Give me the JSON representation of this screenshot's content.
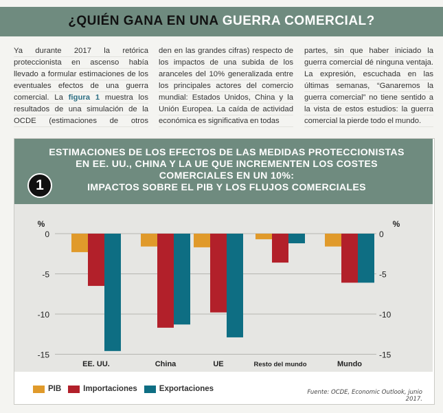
{
  "header": {
    "title_prefix": "¿QUIÉN GANA EN UNA ",
    "title_highlight": "GUERRA COMERCIAL?"
  },
  "intro": {
    "col1_before": "Ya durante 2017 la retórica proteccionista en ascenso había llevado a formular estimaciones de los eventuales efectos de una guerra comercial. La ",
    "col1_ref": "figura 1",
    "col1_after": " muestra los resultados de una simulación de la OCDE (estimaciones de otros organismos coinci-",
    "col2": "den en las grandes cifras) respecto de los impactos de una subida de los aranceles del 10% generalizada entre los principales actores del comercio mundial: Estados Unidos, China y la Unión Europea. La caída de actividad económica es significativa en todas",
    "col3": "partes, sin que haber iniciado la guerra comercial dé ninguna ventaja. La expresión, escuchada en las últimas semanas, “Ganaremos la guerra comercial” no tiene sentido a la vista de estos estudios: la guerra comercial la pierde todo el mundo."
  },
  "figure": {
    "number": "1",
    "title": "ESTIMACIONES DE LOS EFECTOS DE LAS MEDIDAS PROTECCIONISTAS\nEN EE. UU., CHINA Y LA UE QUE INCREMENTEN LOS COSTES\nCOMERCIALES EN UN 10%:\nIMPACTOS SOBRE EL PIB Y LOS FLUJOS COMERCIALES",
    "source": "Fuente: OCDE, Economic Outlook, junio 2017."
  },
  "chart_data": {
    "type": "bar",
    "categories": [
      "EE. UU.",
      "China",
      "UE",
      "Resto del mundo",
      "Mundo"
    ],
    "series": [
      {
        "name": "PIB",
        "color": "#e09a2b",
        "values": [
          -2.3,
          -1.6,
          -1.7,
          -0.7,
          -1.6
        ]
      },
      {
        "name": "Importaciones",
        "color": "#b2202a",
        "values": [
          -6.5,
          -11.7,
          -9.8,
          -3.6,
          -6.1
        ]
      },
      {
        "name": "Exportaciones",
        "color": "#0e6e83",
        "values": [
          -14.6,
          -11.3,
          -12.9,
          -1.2,
          -6.1
        ]
      }
    ],
    "ylabel": "%",
    "ylim": [
      -15,
      0
    ],
    "yticks": [
      0,
      -5,
      -10,
      -15
    ],
    "ytick_labels": [
      "0",
      "-5",
      "-10",
      "-15"
    ],
    "grid": true,
    "legend": "bottom-left"
  }
}
